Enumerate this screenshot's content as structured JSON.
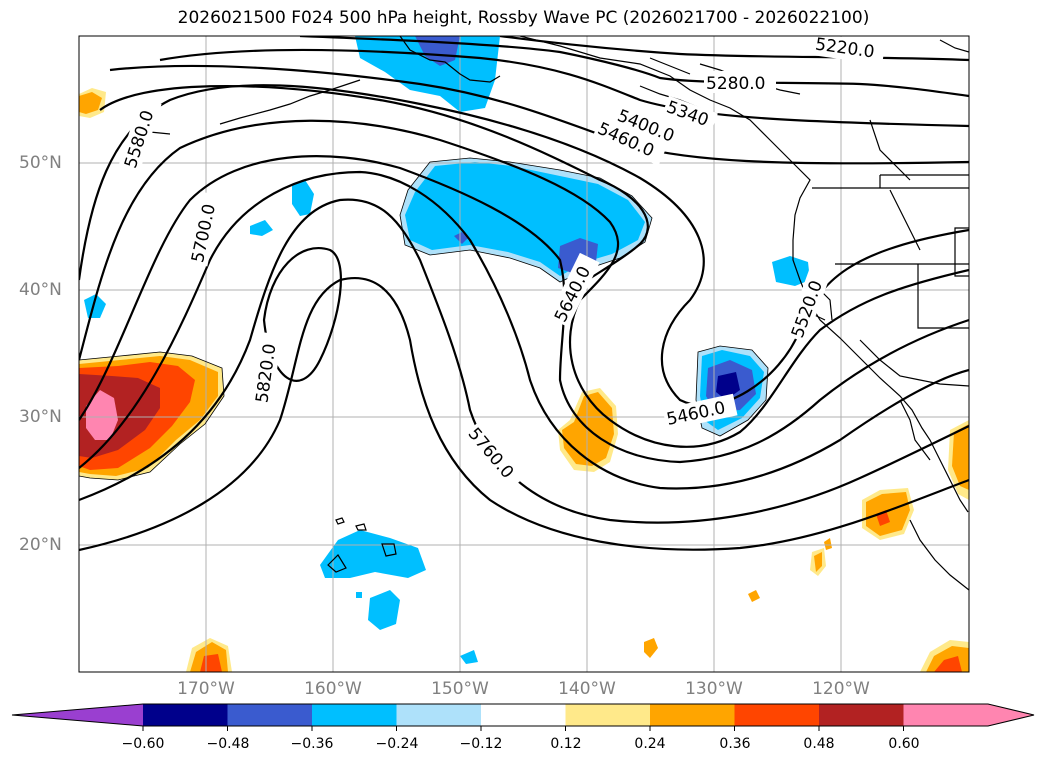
{
  "title": "2026021500 F024 500 hPa height, Rossby Wave PC (2026021700 - 2026022100)",
  "latitude_labels": [
    "50°N",
    "40°N",
    "30°N",
    "20°N"
  ],
  "longitude_labels": [
    "170°W",
    "160°W",
    "150°W",
    "140°W",
    "130°W",
    "120°W"
  ],
  "contour_labels": [
    "5220.0",
    "5280.0",
    "5340",
    "5400.0",
    "5460.0",
    "5580.0",
    "5700.0",
    "5820.0",
    "5640.0",
    "5520.0",
    "5460.0",
    "5760.0"
  ],
  "colorbar": {
    "ticks": [
      "−0.60",
      "−0.48",
      "−0.36",
      "−0.24",
      "−0.12",
      "0.12",
      "0.24",
      "0.36",
      "0.48",
      "0.60"
    ],
    "colors": [
      "#9a3fd0",
      "#00008b",
      "#3a5bcf",
      "#00bfff",
      "#aee1fa",
      "#ffffff",
      "#ffe98a",
      "#ffa500",
      "#ff4500",
      "#b22222",
      "#ff85b0",
      "#ff85b0"
    ]
  }
}
